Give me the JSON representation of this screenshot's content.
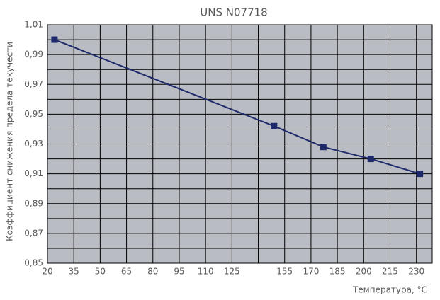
{
  "chart_data": {
    "type": "line",
    "title": "UNS N07718",
    "x_label": "Температура, °C",
    "y_label": "Коэффициент снижения предела текучести",
    "series": [
      {
        "name": "UNS N07718",
        "color": "#1f2a6b",
        "x": [
          24,
          149,
          177,
          204,
          232
        ],
        "values": [
          1.0,
          0.942,
          0.928,
          0.92,
          0.91
        ]
      }
    ],
    "xlim": [
      20,
      239
    ],
    "ylim": [
      0.85,
      1.01
    ],
    "xticks": [
      20,
      35,
      50,
      65,
      80,
      95,
      110,
      125,
      155,
      170,
      185,
      200,
      215,
      230
    ],
    "x_unlabeled_ticks": [
      140
    ],
    "yticks": [
      {
        "value": 0.85,
        "label": "0,85"
      },
      {
        "value": 0.87,
        "label": "0,87"
      },
      {
        "value": 0.89,
        "label": "0,89"
      },
      {
        "value": 0.91,
        "label": "0,91"
      },
      {
        "value": 0.93,
        "label": "0,93"
      },
      {
        "value": 0.95,
        "label": "0,95"
      },
      {
        "value": 0.97,
        "label": "0,97"
      },
      {
        "value": 0.99,
        "label": "0,99"
      },
      {
        "value": 1.01,
        "label": "1,01"
      }
    ],
    "y_unlabeled_ticks": [
      0.86,
      0.88,
      0.9,
      0.92,
      0.94,
      0.96,
      0.98,
      1.0
    ],
    "grid": true,
    "plot_background": "#b9bcc3"
  }
}
